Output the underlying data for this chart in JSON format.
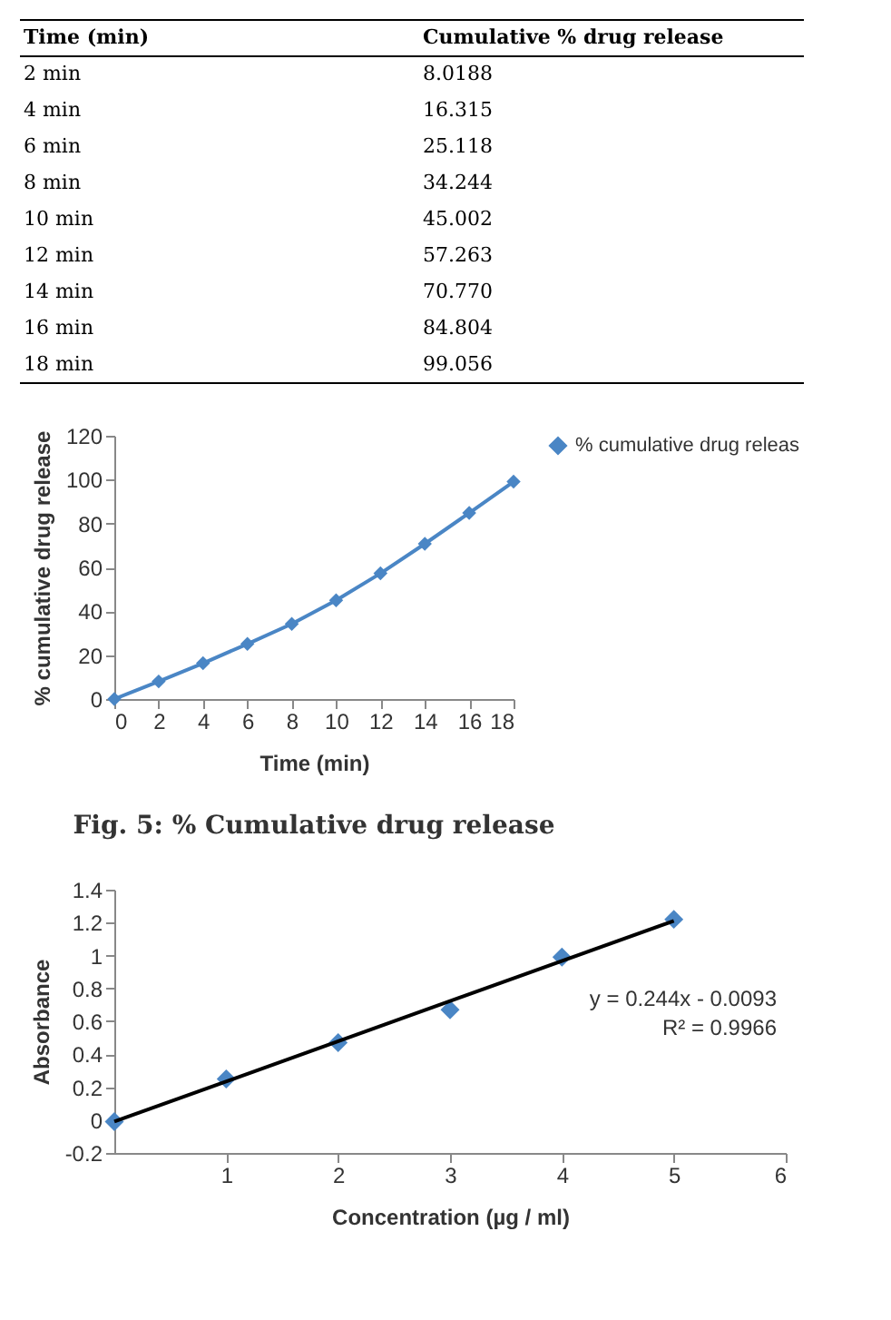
{
  "chart_data": [
    {
      "type": "line",
      "title": "Fig. 5: % Cumulative drug release",
      "xlabel": "Time (min)",
      "ylabel": "% cumulative drug release",
      "x": [
        0,
        2,
        4,
        6,
        8,
        10,
        12,
        14,
        16,
        18
      ],
      "series": [
        {
          "name": "% cumulative drug releas",
          "color": "#4a86c5",
          "values": [
            0,
            8.0188,
            16.315,
            25.118,
            34.244,
            45.002,
            57.263,
            70.77,
            84.804,
            99.056
          ]
        }
      ],
      "value_labels": [
        null,
        "8.0188",
        "16.315",
        "25.118",
        "34.244",
        "45.002",
        "57.263",
        "70.770",
        "84.804",
        "99.056"
      ],
      "annotations": [
        "Time (min)",
        "Cumulative % drug release",
        "2 min",
        "4 min",
        "6 min",
        "8 min",
        "10 min",
        "12 min",
        "14 min",
        "16 min",
        "18 min"
      ],
      "xlim": [
        0,
        18
      ],
      "xticks": [
        0,
        2,
        4,
        6,
        8,
        10,
        12,
        14,
        16,
        18
      ],
      "ylim": [
        0,
        120
      ],
      "yticks": [
        0,
        20,
        40,
        60,
        80,
        100,
        120
      ],
      "legend": "right",
      "marker": "diamond"
    },
    {
      "type": "scatter",
      "xlabel": "Concentration (µg / ml)",
      "ylabel": "Absorbance",
      "x": [
        0,
        1,
        2,
        3,
        4,
        5
      ],
      "series": [
        {
          "color": "#4a86c5",
          "values": [
            -0.01,
            0.25,
            0.47,
            0.67,
            0.99,
            1.22
          ]
        },
        {
          "type": "line",
          "color": "#000000",
          "x": [
            0,
            5
          ],
          "values": [
            -0.0093,
            1.2107
          ],
          "marker": "none"
        }
      ],
      "xlim": [
        0,
        6
      ],
      "xticks": [
        1,
        2,
        3,
        4,
        5,
        6
      ],
      "ylim": [
        -0.2,
        1.4
      ],
      "yticks": [
        -0.2,
        0,
        0.2,
        0.4,
        0.6,
        0.8,
        1,
        1.2,
        1.4
      ],
      "marker": "diamond",
      "annotations": [
        "y = 0.244x - 0.0093",
        "R² = 0.9966"
      ]
    }
  ]
}
